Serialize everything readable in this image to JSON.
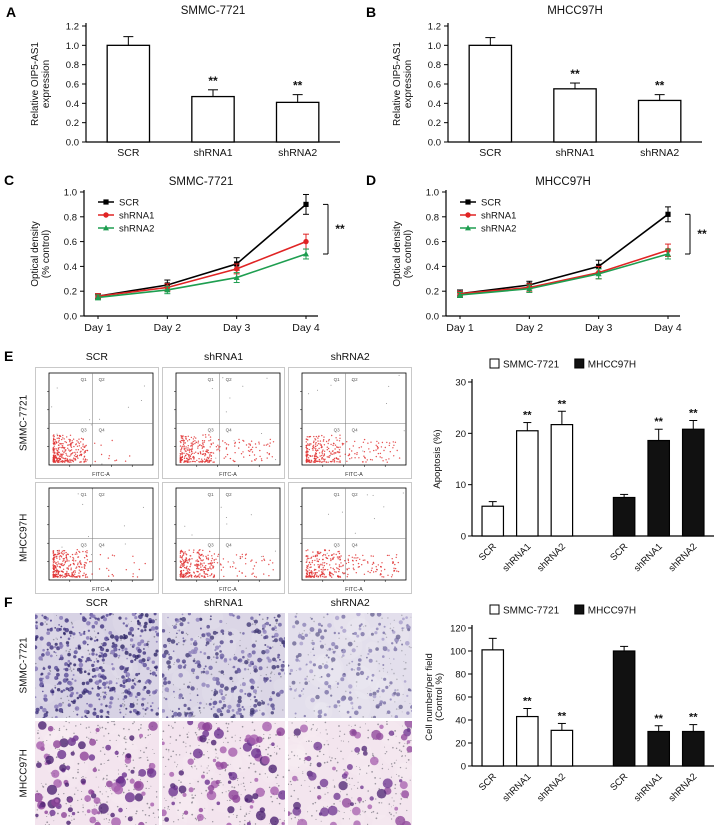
{
  "panel_labels": {
    "A": "A",
    "B": "B",
    "C": "C",
    "D": "D",
    "E": "E",
    "F": "F"
  },
  "colors": {
    "scr_line": "#000000",
    "shrna1_line": "#e02424",
    "shrna2_line": "#1e9e50",
    "open_bar": "#ffffff",
    "filled_bar": "#111111",
    "flow_dot": "#e03232"
  },
  "chart_data": [
    {
      "id": "A",
      "type": "bar",
      "title": "SMMC-7721",
      "ylabel_lines": [
        "Relative OIP5-AS1",
        "expression"
      ],
      "categories": [
        "SCR",
        "shRNA1",
        "shRNA2"
      ],
      "values": [
        1.0,
        0.47,
        0.41
      ],
      "errors": [
        0.09,
        0.07,
        0.08
      ],
      "significance": [
        "",
        "**",
        "**"
      ],
      "ylim": [
        0,
        1.2
      ],
      "yticks": [
        0,
        0.2,
        0.4,
        0.6,
        0.8,
        1.0,
        1.2
      ],
      "tick_decimals": 1
    },
    {
      "id": "B",
      "type": "bar",
      "title": "MHCC97H",
      "ylabel_lines": [
        "Relative OIP5-AS1",
        "expression"
      ],
      "categories": [
        "SCR",
        "shRNA1",
        "shRNA2"
      ],
      "values": [
        1.0,
        0.55,
        0.43
      ],
      "errors": [
        0.08,
        0.06,
        0.06
      ],
      "significance": [
        "",
        "**",
        "**"
      ],
      "ylim": [
        0,
        1.2
      ],
      "yticks": [
        0,
        0.2,
        0.4,
        0.6,
        0.8,
        1.0,
        1.2
      ],
      "tick_decimals": 1
    },
    {
      "id": "C",
      "type": "line",
      "title": "SMMC-7721",
      "ylabel_lines": [
        "Optical density",
        "(% control)"
      ],
      "categories": [
        "Day 1",
        "Day 2",
        "Day 3",
        "Day 4"
      ],
      "series": [
        {
          "name": "SCR",
          "color": "#000000",
          "marker": "square",
          "values": [
            0.16,
            0.25,
            0.42,
            0.9
          ],
          "errors": [
            0.02,
            0.04,
            0.05,
            0.08
          ]
        },
        {
          "name": "shRNA1",
          "color": "#e02424",
          "marker": "circle",
          "values": [
            0.16,
            0.23,
            0.38,
            0.6
          ],
          "errors": [
            0.02,
            0.03,
            0.04,
            0.06
          ]
        },
        {
          "name": "shRNA2",
          "color": "#1e9e50",
          "marker": "triangle",
          "values": [
            0.15,
            0.21,
            0.31,
            0.5
          ],
          "errors": [
            0.02,
            0.03,
            0.04,
            0.04
          ]
        }
      ],
      "ylim": [
        0,
        1.0
      ],
      "yticks": [
        0,
        0.2,
        0.4,
        0.6,
        0.8,
        1.0
      ],
      "tick_decimals": 1,
      "significance": "**"
    },
    {
      "id": "D",
      "type": "line",
      "title": "MHCC97H",
      "ylabel_lines": [
        "Optical density",
        "(% control)"
      ],
      "categories": [
        "Day 1",
        "Day 2",
        "Day 3",
        "Day 4"
      ],
      "series": [
        {
          "name": "SCR",
          "color": "#000000",
          "marker": "square",
          "values": [
            0.18,
            0.25,
            0.4,
            0.82
          ],
          "errors": [
            0.03,
            0.03,
            0.05,
            0.06
          ]
        },
        {
          "name": "shRNA1",
          "color": "#e02424",
          "marker": "circle",
          "values": [
            0.18,
            0.23,
            0.35,
            0.53
          ],
          "errors": [
            0.02,
            0.03,
            0.05,
            0.05
          ]
        },
        {
          "name": "shRNA2",
          "color": "#1e9e50",
          "marker": "triangle",
          "values": [
            0.17,
            0.22,
            0.34,
            0.5
          ],
          "errors": [
            0.02,
            0.03,
            0.04,
            0.04
          ]
        }
      ],
      "ylim": [
        0,
        1.0
      ],
      "yticks": [
        0,
        0.2,
        0.4,
        0.6,
        0.8,
        1.0
      ],
      "tick_decimals": 1,
      "significance": "**"
    },
    {
      "id": "E",
      "type": "grouped-bar",
      "legend": [
        {
          "label": "SMMC-7721",
          "fill": "#ffffff"
        },
        {
          "label": "MHCC97H",
          "fill": "#111111"
        }
      ],
      "ylabel_lines": [
        "Apoptosis (%)"
      ],
      "categories": [
        "SCR",
        "shRNA1",
        "shRNA2"
      ],
      "groups": [
        {
          "name": "SMMC-7721",
          "fill": "#ffffff",
          "values": [
            5.8,
            20.5,
            21.7
          ],
          "errors": [
            0.9,
            1.6,
            2.6
          ],
          "significance": [
            "",
            "**",
            "**"
          ]
        },
        {
          "name": "MHCC97H",
          "fill": "#111111",
          "values": [
            7.5,
            18.6,
            20.8
          ],
          "errors": [
            0.6,
            2.2,
            1.7
          ],
          "significance": [
            "",
            "**",
            "**"
          ]
        }
      ],
      "ylim": [
        0,
        30
      ],
      "yticks": [
        0,
        10,
        20,
        30
      ],
      "tick_decimals": 0
    },
    {
      "id": "F",
      "type": "grouped-bar",
      "legend": [
        {
          "label": "SMMC-7721",
          "fill": "#ffffff"
        },
        {
          "label": "MHCC97H",
          "fill": "#111111"
        }
      ],
      "ylabel_lines": [
        "Cell number/per field",
        "(Control %)"
      ],
      "categories": [
        "SCR",
        "shRNA1",
        "shRNA2"
      ],
      "groups": [
        {
          "name": "SMMC-7721",
          "fill": "#ffffff",
          "values": [
            101,
            43,
            31
          ],
          "errors": [
            10,
            7,
            6
          ],
          "significance": [
            "",
            "**",
            "**"
          ]
        },
        {
          "name": "MHCC97H",
          "fill": "#111111",
          "values": [
            100,
            30,
            30
          ],
          "errors": [
            4,
            5,
            6
          ],
          "significance": [
            "",
            "**",
            "**"
          ]
        }
      ],
      "ylim": [
        0,
        120
      ],
      "yticks": [
        0,
        20,
        40,
        60,
        80,
        100,
        120
      ],
      "tick_decimals": 0
    }
  ],
  "flow_panel": {
    "col_labels": [
      "SCR",
      "shRNA1",
      "shRNA2"
    ],
    "row_labels": [
      "SMMC-7721",
      "MHCC97H"
    ],
    "x_axis_label": "FITC-A",
    "quadrant_labels": [
      "Q1",
      "Q2",
      "Q3",
      "Q4"
    ],
    "spread": [
      [
        0.07,
        0.34,
        0.38
      ],
      [
        0.09,
        0.3,
        0.36
      ]
    ],
    "dot_color": "#e03232"
  },
  "transwell_panel": {
    "col_labels": [
      "SCR",
      "shRNA1",
      "shRNA2"
    ],
    "row_labels": [
      "SMMC-7721",
      "MHCC97H"
    ],
    "rows": [
      {
        "bg": "#d7d2e4",
        "col_fade": [
          0,
          0.1,
          0.3
        ],
        "dot_colors": [
          "#41357f",
          "#5a4d99",
          "#2e2566",
          "#8375b5"
        ],
        "counts": [
          430,
          300,
          185
        ],
        "rmin": 0.8,
        "rmax": 2.4,
        "specks": 130,
        "speck_color": "#585868"
      },
      {
        "bg": "#f3e4ee",
        "col_fade": [
          0,
          0,
          0.05
        ],
        "dot_colors": [
          "#6d3390",
          "#8d4398",
          "#4e2373",
          "#a65fae"
        ],
        "counts": [
          95,
          78,
          62
        ],
        "rmin": 1.6,
        "rmax": 5.2,
        "specks": 260,
        "speck_color": "#4a4a55"
      }
    ]
  }
}
